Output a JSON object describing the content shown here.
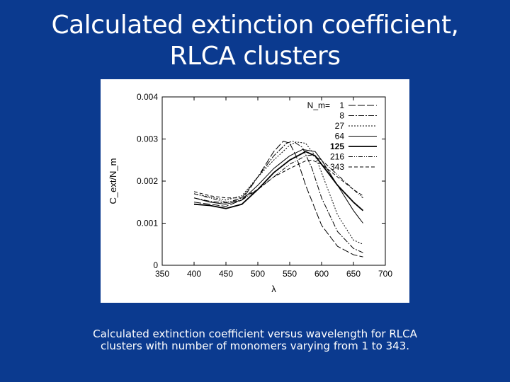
{
  "slide": {
    "title_line1": "Calculated extinction coefficient,",
    "title_line2": "RLCA clusters",
    "caption_line1": "Calculated extinction coefficient versus wavelength for RLCA",
    "caption_line2": "clusters with number of monomers varying from 1 to 343.",
    "background_color": "#0b3a8f"
  },
  "chart_data": {
    "type": "line",
    "xlabel": "λ",
    "ylabel": "C_ext/N_m",
    "xlim": [
      350,
      700
    ],
    "ylim": [
      0,
      0.004
    ],
    "x_ticks": [
      "350",
      "400",
      "450",
      "500",
      "550",
      "600",
      "650",
      "700"
    ],
    "y_ticks": [
      "0",
      "0.001",
      "0.002",
      "0.003",
      "0.004"
    ],
    "grid": false,
    "legend_position": "top-right",
    "legend_title": "N_m=",
    "series": [
      {
        "name": "1",
        "dash": "10,3",
        "bold": false,
        "x": [
          400,
          425,
          450,
          475,
          500,
          525,
          540,
          550,
          560,
          575,
          600,
          625,
          650,
          665
        ],
        "y": [
          0.0015,
          0.00145,
          0.0014,
          0.00155,
          0.0021,
          0.0027,
          0.00295,
          0.0029,
          0.0026,
          0.0019,
          0.00095,
          0.00045,
          0.00025,
          0.0002
        ]
      },
      {
        "name": "8",
        "dash": "8,2,2,2",
        "bold": false,
        "x": [
          400,
          425,
          450,
          475,
          500,
          525,
          545,
          555,
          570,
          585,
          600,
          625,
          650,
          665
        ],
        "y": [
          0.0016,
          0.00152,
          0.00148,
          0.0016,
          0.0021,
          0.0026,
          0.0029,
          0.00295,
          0.0028,
          0.0023,
          0.0016,
          0.0008,
          0.0004,
          0.0003
        ]
      },
      {
        "name": "27",
        "dash": "2,2",
        "bold": false,
        "x": [
          400,
          425,
          450,
          475,
          500,
          525,
          550,
          560,
          575,
          590,
          600,
          625,
          650,
          665
        ],
        "y": [
          0.0017,
          0.00162,
          0.00155,
          0.00165,
          0.0021,
          0.0025,
          0.00285,
          0.00293,
          0.0029,
          0.0026,
          0.0022,
          0.0012,
          0.0006,
          0.0005
        ]
      },
      {
        "name": "64",
        "dash": "",
        "bold": false,
        "x": [
          400,
          425,
          450,
          475,
          500,
          525,
          550,
          570,
          590,
          600,
          625,
          650,
          665
        ],
        "y": [
          0.0016,
          0.0015,
          0.00145,
          0.00155,
          0.0019,
          0.0023,
          0.0026,
          0.00275,
          0.0027,
          0.0025,
          0.0019,
          0.0013,
          0.001
        ]
      },
      {
        "name": "125",
        "dash": "",
        "bold": true,
        "x": [
          400,
          425,
          450,
          475,
          500,
          525,
          550,
          575,
          590,
          600,
          625,
          650,
          665
        ],
        "y": [
          0.00145,
          0.00142,
          0.00135,
          0.00145,
          0.0018,
          0.0022,
          0.0025,
          0.0027,
          0.0026,
          0.0024,
          0.0019,
          0.0015,
          0.0013
        ]
      },
      {
        "name": "216",
        "dash": "6,2,1,2,1,2",
        "bold": false,
        "x": [
          400,
          425,
          450,
          475,
          500,
          525,
          550,
          575,
          585,
          600,
          625,
          650,
          665
        ],
        "y": [
          0.0017,
          0.0016,
          0.0015,
          0.00155,
          0.0018,
          0.0021,
          0.0024,
          0.0026,
          0.00262,
          0.0025,
          0.00215,
          0.0018,
          0.0016
        ]
      },
      {
        "name": "343",
        "dash": "5,3",
        "bold": false,
        "x": [
          400,
          425,
          450,
          475,
          500,
          525,
          550,
          575,
          585,
          600,
          625,
          650,
          665
        ],
        "y": [
          0.00175,
          0.00165,
          0.0016,
          0.0016,
          0.0018,
          0.0021,
          0.0023,
          0.00248,
          0.0025,
          0.0024,
          0.0021,
          0.0018,
          0.00165
        ]
      }
    ]
  }
}
